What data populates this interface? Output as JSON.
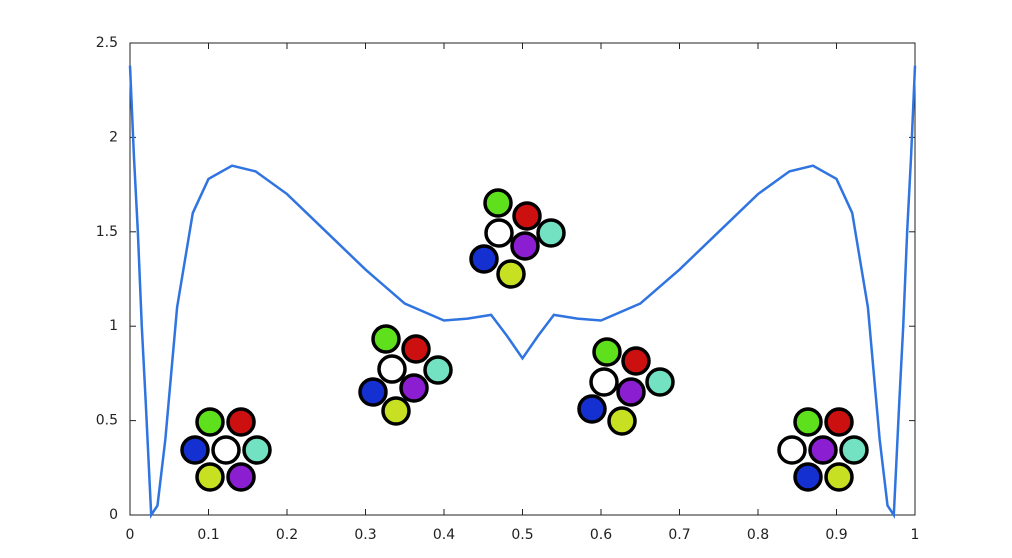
{
  "chart_data": {
    "type": "line",
    "x": [
      0,
      0.005,
      0.01,
      0.015,
      0.02,
      0.027,
      0.035,
      0.045,
      0.06,
      0.08,
      0.1,
      0.13,
      0.16,
      0.2,
      0.25,
      0.3,
      0.35,
      0.4,
      0.43,
      0.46,
      0.48,
      0.5,
      0.52,
      0.54,
      0.57,
      0.6,
      0.65,
      0.7,
      0.75,
      0.8,
      0.84,
      0.87,
      0.9,
      0.92,
      0.94,
      0.955,
      0.965,
      0.973,
      0.98,
      0.985,
      0.99,
      0.995,
      1
    ],
    "values": [
      2.38,
      1.9,
      1.5,
      1.0,
      0.6,
      0.0,
      0.05,
      0.4,
      1.1,
      1.6,
      1.78,
      1.85,
      1.82,
      1.7,
      1.5,
      1.3,
      1.12,
      1.03,
      1.04,
      1.06,
      0.95,
      0.83,
      0.95,
      1.06,
      1.04,
      1.03,
      1.12,
      1.3,
      1.5,
      1.7,
      1.82,
      1.85,
      1.78,
      1.6,
      1.1,
      0.4,
      0.05,
      0.0,
      0.6,
      1.0,
      1.5,
      1.9,
      2.38
    ],
    "color": "#2f74e0",
    "xlim": [
      0,
      1
    ],
    "xticks": [
      0,
      0.1,
      0.2,
      0.3,
      0.4,
      0.5,
      0.6,
      0.7,
      0.8,
      0.9,
      1
    ],
    "ylim": [
      0,
      2.5
    ],
    "yticks": [
      0,
      0.5,
      1,
      1.5,
      2,
      2.5
    ]
  }
}
